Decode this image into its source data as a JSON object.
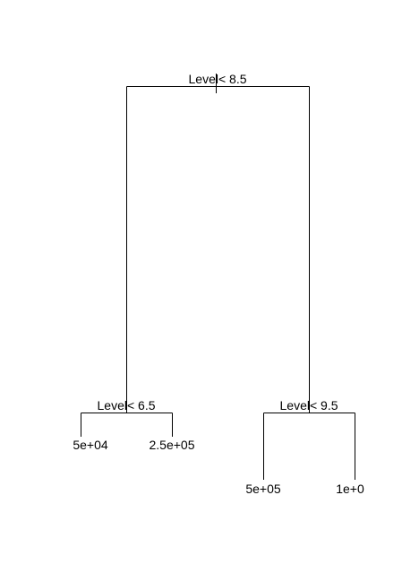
{
  "tree": {
    "root": {
      "split_label": "Level< 8.5",
      "left": {
        "split_label": "Level< 6.5",
        "left_leaf": "5e+04",
        "right_leaf": "2.5e+05"
      },
      "right": {
        "split_label": "Level< 9.5",
        "left_leaf": "5e+05",
        "right_leaf": "1e+0"
      }
    }
  },
  "colors": {
    "line": "#000000",
    "text": "#000000",
    "background": "#ffffff"
  }
}
